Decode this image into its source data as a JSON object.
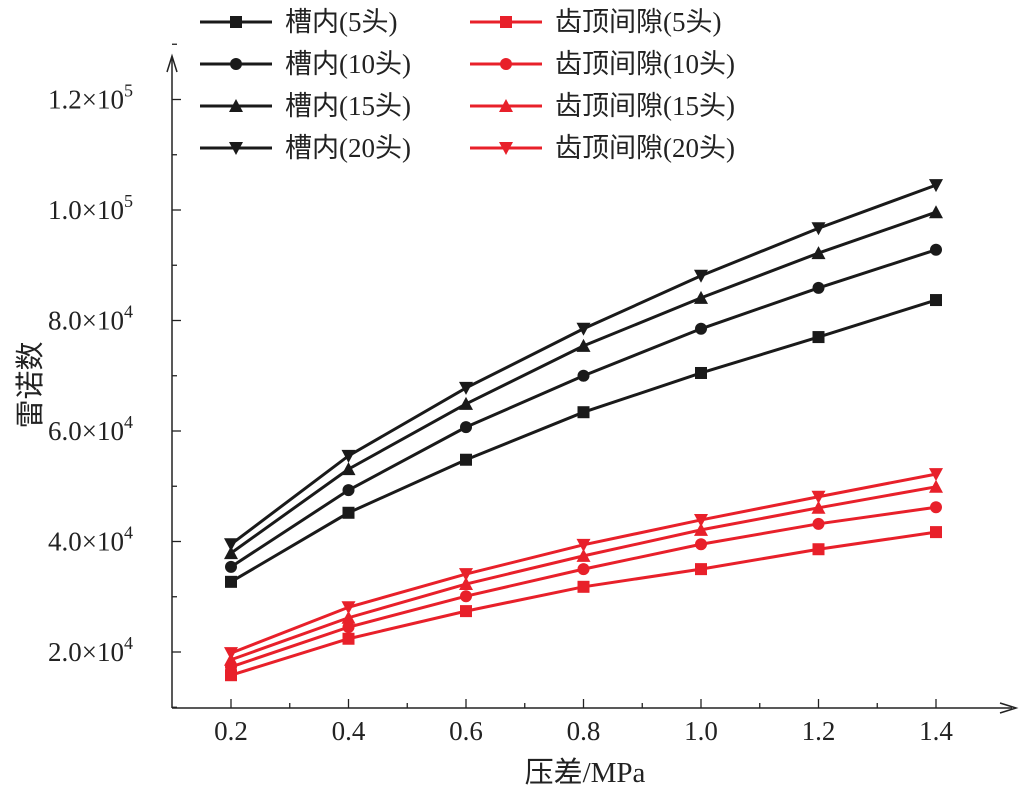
{
  "chart_data": {
    "type": "line",
    "title": "",
    "xlabel": "压差/MPa",
    "ylabel": "雷诺数",
    "xlim": [
      0.1,
      1.5
    ],
    "ylim": [
      10000,
      130000
    ],
    "grid": false,
    "legend_placement": "top-left",
    "x": [
      0.2,
      0.4,
      0.6,
      0.8,
      1.0,
      1.2,
      1.4
    ],
    "x_tick_labels": [
      "0.2",
      "0.4",
      "0.6",
      "0.8",
      "1.0",
      "1.2",
      "1.4"
    ],
    "y_ticks": [
      20000,
      40000,
      60000,
      80000,
      100000,
      120000
    ],
    "y_tick_labels": [
      {
        "base": "2.0×10",
        "exp": "4"
      },
      {
        "base": "4.0×10",
        "exp": "4"
      },
      {
        "base": "6.0×10",
        "exp": "4"
      },
      {
        "base": "8.0×10",
        "exp": "4"
      },
      {
        "base": "1.0×10",
        "exp": "5"
      },
      {
        "base": "1.2×10",
        "exp": "5"
      }
    ],
    "series": [
      {
        "name": "槽内(5头)",
        "color": "#1a1a1a",
        "marker": "square",
        "values": [
          32700,
          45200,
          54800,
          63400,
          70500,
          77000,
          83700
        ]
      },
      {
        "name": "槽内(10头)",
        "color": "#1a1a1a",
        "marker": "circle",
        "values": [
          35400,
          49300,
          60700,
          70000,
          78500,
          85900,
          92800
        ]
      },
      {
        "name": "槽内(15头)",
        "color": "#1a1a1a",
        "marker": "triangle-up",
        "values": [
          37900,
          53100,
          64900,
          75400,
          84100,
          92200,
          99600
        ]
      },
      {
        "name": "槽内(20头)",
        "color": "#1a1a1a",
        "marker": "triangle-down",
        "values": [
          39500,
          55500,
          67800,
          78500,
          88100,
          96700,
          104500
        ]
      },
      {
        "name": "齿顶间隙(5头)",
        "color": "#e8202a",
        "marker": "square",
        "values": [
          15800,
          22400,
          27400,
          31800,
          35000,
          38600,
          41700
        ]
      },
      {
        "name": "齿顶间隙(10头)",
        "color": "#e8202a",
        "marker": "circle",
        "values": [
          17300,
          24500,
          30100,
          35000,
          39500,
          43200,
          46200
        ]
      },
      {
        "name": "齿顶间隙(15头)",
        "color": "#e8202a",
        "marker": "triangle-up",
        "values": [
          18600,
          26200,
          32300,
          37400,
          42100,
          46100,
          49900
        ]
      },
      {
        "name": "齿顶间隙(20头)",
        "color": "#e8202a",
        "marker": "triangle-down",
        "values": [
          19800,
          28100,
          34100,
          39400,
          43900,
          48100,
          52200
        ]
      }
    ]
  }
}
